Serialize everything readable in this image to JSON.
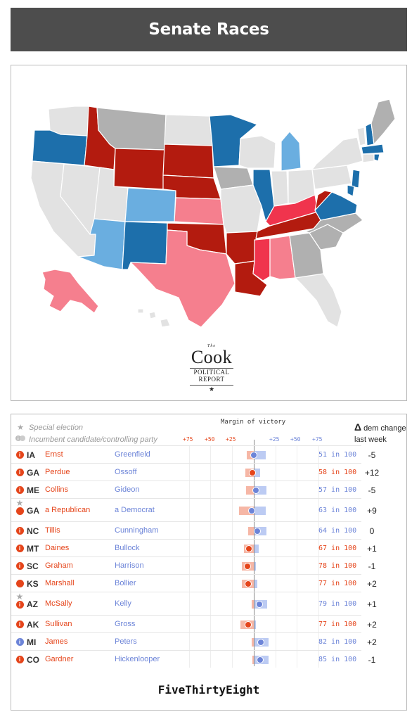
{
  "header": {
    "title": "Senate Races"
  },
  "map": {
    "colors": {
      "solid_dem": "#1d6fab",
      "lean_dem": "#6aaee0",
      "solid_rep": "#b31b0f",
      "likely_rep": "#f0344d",
      "lean_rep": "#f57f8e",
      "tossup": "#b0b0b0",
      "no_race": "#e2e2e2"
    },
    "logo": {
      "the": "The",
      "name": "Cook",
      "sub1": "POLITICAL",
      "sub2": "REPORT",
      "star": "★"
    }
  },
  "races_panel": {
    "legend": {
      "special": "Special election",
      "incumbent": "Incumbent candidate/controlling party"
    },
    "margin_title": "Margin of victory",
    "ticks": {
      "rep": [
        "+75",
        "+50",
        "+25"
      ],
      "dem": [
        "+25",
        "+50",
        "+75"
      ]
    },
    "delta_header": {
      "symbol": "Δ",
      "line1": "dem change",
      "line2": "last week"
    },
    "colors": {
      "rep": "#e5451b",
      "dem": "#6c84d8"
    },
    "rows": [
      {
        "state": "IA",
        "special": false,
        "incumbent": "rep",
        "rep": "Ernst",
        "dem": "Greenfield",
        "odds": "51 in 100",
        "favored": "dem",
        "delta": "-5"
      },
      {
        "state": "GA",
        "special": false,
        "incumbent": "rep",
        "rep": "Perdue",
        "dem": "Ossoff",
        "odds": "58 in 100",
        "favored": "rep",
        "delta": "+12"
      },
      {
        "state": "ME",
        "special": false,
        "incumbent": "rep",
        "rep": "Collins",
        "dem": "Gideon",
        "odds": "57 in 100",
        "favored": "dem",
        "delta": "-5"
      },
      {
        "state": "GA",
        "special": true,
        "incumbent": "rep-open",
        "rep": "a Republican",
        "dem": "a Democrat",
        "odds": "63 in 100",
        "favored": "dem",
        "delta": "+9"
      },
      {
        "state": "NC",
        "special": false,
        "incumbent": "rep",
        "rep": "Tillis",
        "dem": "Cunningham",
        "odds": "64 in 100",
        "favored": "dem",
        "delta": "0"
      },
      {
        "state": "MT",
        "special": false,
        "incumbent": "rep",
        "rep": "Daines",
        "dem": "Bullock",
        "odds": "67 in 100",
        "favored": "rep",
        "delta": "+1"
      },
      {
        "state": "SC",
        "special": false,
        "incumbent": "rep",
        "rep": "Graham",
        "dem": "Harrison",
        "odds": "78 in 100",
        "favored": "rep",
        "delta": "-1"
      },
      {
        "state": "KS",
        "special": false,
        "incumbent": "rep-open",
        "rep": "Marshall",
        "dem": "Bollier",
        "odds": "77 in 100",
        "favored": "rep",
        "delta": "+2"
      },
      {
        "state": "AZ",
        "special": true,
        "incumbent": "rep",
        "rep": "McSally",
        "dem": "Kelly",
        "odds": "79 in 100",
        "favored": "dem",
        "delta": "+1"
      },
      {
        "state": "AK",
        "special": false,
        "incumbent": "rep",
        "rep": "Sullivan",
        "dem": "Gross",
        "odds": "77 in 100",
        "favored": "rep",
        "delta": "+2"
      },
      {
        "state": "MI",
        "special": false,
        "incumbent": "dem",
        "rep": "James",
        "dem": "Peters",
        "odds": "82 in 100",
        "favored": "dem",
        "delta": "+2"
      },
      {
        "state": "CO",
        "special": false,
        "incumbent": "rep",
        "rep": "Gardner",
        "dem": "Hickenlooper",
        "odds": "85 in 100",
        "favored": "dem",
        "delta": "-1"
      }
    ],
    "footer_brand": "FiveThirtyEight"
  }
}
